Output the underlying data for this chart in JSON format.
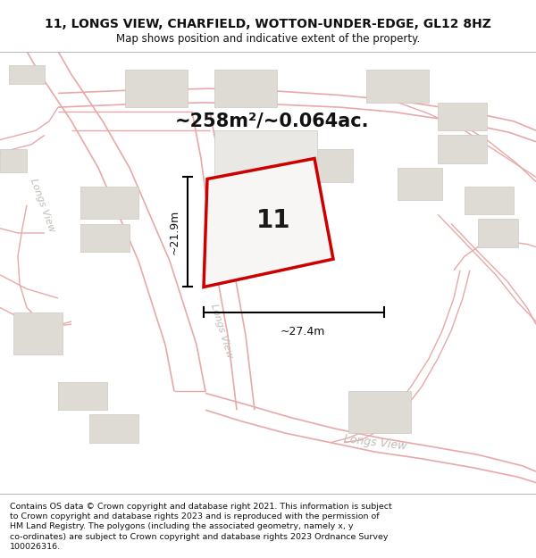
{
  "title": "11, LONGS VIEW, CHARFIELD, WOTTON-UNDER-EDGE, GL12 8HZ",
  "subtitle": "Map shows position and indicative extent of the property.",
  "footer": "Contains OS data © Crown copyright and database right 2021. This information is subject to Crown copyright and database rights 2023 and is reproduced with the permission of HM Land Registry. The polygons (including the associated geometry, namely x, y co-ordinates) are subject to Crown copyright and database rights 2023 Ordnance Survey 100026316.",
  "map_bg": "#f7f6f4",
  "road_color": "#e8a8a8",
  "building_color": "#dedad4",
  "building_edge": "#ccc8c2",
  "plot_red": "#cc0000",
  "plot_fill": "#f7f6f4",
  "area_text": "~258m²/~0.064ac.",
  "plot_label": "11",
  "dim_width": "~27.4m",
  "dim_height": "~21.9m",
  "road_label_color": "#c0bcb6",
  "title_fontsize": 10,
  "subtitle_fontsize": 8.5,
  "footer_fontsize": 6.8
}
